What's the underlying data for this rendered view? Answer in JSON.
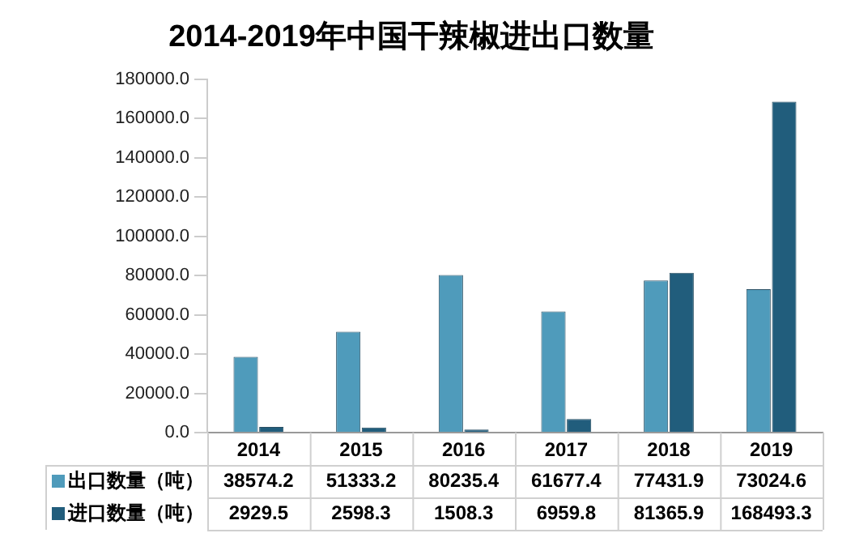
{
  "chart_data": {
    "type": "bar",
    "title": "2014-2019年中国干辣椒进出口数量",
    "categories": [
      "2014",
      "2015",
      "2016",
      "2017",
      "2018",
      "2019"
    ],
    "series": [
      {
        "name": "出口数量（吨）",
        "color": "#4f9bbb",
        "values": [
          38574.2,
          51333.2,
          80235.4,
          61677.4,
          77431.9,
          73024.6
        ]
      },
      {
        "name": "进口数量（吨）",
        "color": "#215d7c",
        "values": [
          2929.5,
          2598.3,
          1508.3,
          6959.8,
          81365.9,
          168493.3
        ]
      }
    ],
    "ylim": [
      0,
      180000
    ],
    "yticks": [
      {
        "value": 0,
        "label": "0.0"
      },
      {
        "value": 20000,
        "label": "20000.0"
      },
      {
        "value": 40000,
        "label": "40000.0"
      },
      {
        "value": 60000,
        "label": "60000.0"
      },
      {
        "value": 80000,
        "label": "80000.0"
      },
      {
        "value": 100000,
        "label": "100000.0"
      },
      {
        "value": 120000,
        "label": "120000.0"
      },
      {
        "value": 140000,
        "label": "140000.0"
      },
      {
        "value": 160000,
        "label": "160000.0"
      },
      {
        "value": 180000,
        "label": "180000.0"
      }
    ],
    "grid": false,
    "legend": "bottom",
    "data_labels": true
  }
}
